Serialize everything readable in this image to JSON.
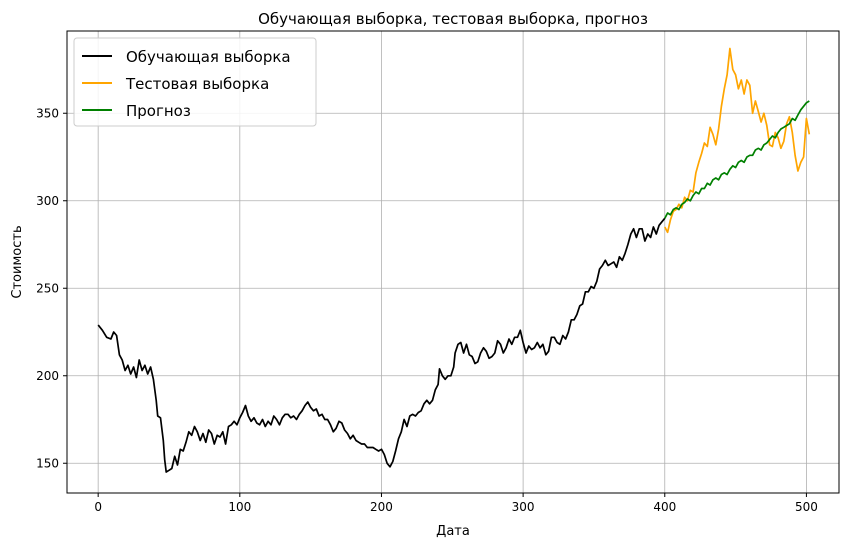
{
  "chart_data": {
    "type": "line",
    "title": "Обучающая выборка, тестовая выборка, прогноз",
    "xlabel": "Дата",
    "ylabel": "Стоимость",
    "xlim": [
      -22,
      523
    ],
    "ylim": [
      133,
      397
    ],
    "x_ticks": [
      0,
      100,
      200,
      300,
      400,
      500
    ],
    "y_ticks": [
      150,
      200,
      250,
      300,
      350
    ],
    "grid": true,
    "legend_position": "top-left",
    "series": [
      {
        "name": "Обучающая выборка",
        "color": "#000000",
        "points": [
          [
            0,
            229
          ],
          [
            3,
            226
          ],
          [
            6,
            222
          ],
          [
            9,
            221
          ],
          [
            11,
            225
          ],
          [
            13,
            223
          ],
          [
            15,
            212
          ],
          [
            17,
            209
          ],
          [
            19,
            203
          ],
          [
            21,
            206
          ],
          [
            23,
            201
          ],
          [
            25,
            205
          ],
          [
            27,
            199
          ],
          [
            29,
            209
          ],
          [
            31,
            203
          ],
          [
            33,
            206
          ],
          [
            35,
            201
          ],
          [
            37,
            205
          ],
          [
            39,
            198
          ],
          [
            41,
            186
          ],
          [
            42,
            177
          ],
          [
            44,
            176
          ],
          [
            46,
            163
          ],
          [
            47,
            152
          ],
          [
            48,
            145
          ],
          [
            50,
            146
          ],
          [
            52,
            147
          ],
          [
            54,
            154
          ],
          [
            56,
            149
          ],
          [
            58,
            158
          ],
          [
            60,
            157
          ],
          [
            62,
            162
          ],
          [
            64,
            168
          ],
          [
            66,
            166
          ],
          [
            68,
            171
          ],
          [
            70,
            168
          ],
          [
            72,
            163
          ],
          [
            74,
            167
          ],
          [
            76,
            162
          ],
          [
            78,
            169
          ],
          [
            80,
            167
          ],
          [
            82,
            161
          ],
          [
            84,
            166
          ],
          [
            86,
            165
          ],
          [
            88,
            168
          ],
          [
            90,
            161
          ],
          [
            92,
            171
          ],
          [
            94,
            172
          ],
          [
            96,
            174
          ],
          [
            98,
            172
          ],
          [
            100,
            176
          ],
          [
            102,
            179
          ],
          [
            104,
            183
          ],
          [
            106,
            177
          ],
          [
            108,
            174
          ],
          [
            110,
            176
          ],
          [
            112,
            173
          ],
          [
            114,
            172
          ],
          [
            116,
            175
          ],
          [
            118,
            171
          ],
          [
            120,
            174
          ],
          [
            122,
            172
          ],
          [
            124,
            177
          ],
          [
            126,
            175
          ],
          [
            128,
            172
          ],
          [
            130,
            176
          ],
          [
            132,
            178
          ],
          [
            134,
            178
          ],
          [
            136,
            176
          ],
          [
            138,
            177
          ],
          [
            140,
            175
          ],
          [
            142,
            178
          ],
          [
            144,
            180
          ],
          [
            146,
            183
          ],
          [
            148,
            185
          ],
          [
            150,
            182
          ],
          [
            152,
            180
          ],
          [
            154,
            181
          ],
          [
            156,
            177
          ],
          [
            158,
            178
          ],
          [
            160,
            175
          ],
          [
            162,
            175
          ],
          [
            164,
            172
          ],
          [
            166,
            168
          ],
          [
            168,
            170
          ],
          [
            170,
            174
          ],
          [
            172,
            173
          ],
          [
            174,
            169
          ],
          [
            176,
            167
          ],
          [
            178,
            164
          ],
          [
            180,
            166
          ],
          [
            182,
            163
          ],
          [
            184,
            162
          ],
          [
            186,
            161
          ],
          [
            188,
            161
          ],
          [
            190,
            159
          ],
          [
            192,
            159
          ],
          [
            194,
            159
          ],
          [
            196,
            158
          ],
          [
            198,
            157
          ],
          [
            200,
            158
          ],
          [
            202,
            155
          ],
          [
            204,
            150
          ],
          [
            206,
            148
          ],
          [
            208,
            151
          ],
          [
            210,
            157
          ],
          [
            212,
            164
          ],
          [
            214,
            168
          ],
          [
            216,
            175
          ],
          [
            218,
            171
          ],
          [
            220,
            177
          ],
          [
            222,
            178
          ],
          [
            224,
            177
          ],
          [
            226,
            179
          ],
          [
            228,
            180
          ],
          [
            230,
            184
          ],
          [
            232,
            186
          ],
          [
            234,
            184
          ],
          [
            236,
            186
          ],
          [
            238,
            192
          ],
          [
            240,
            195
          ],
          [
            241,
            204
          ],
          [
            243,
            200
          ],
          [
            245,
            198
          ],
          [
            247,
            200
          ],
          [
            249,
            200
          ],
          [
            251,
            205
          ],
          [
            252,
            213
          ],
          [
            254,
            218
          ],
          [
            256,
            219
          ],
          [
            258,
            213
          ],
          [
            260,
            218
          ],
          [
            262,
            212
          ],
          [
            264,
            211
          ],
          [
            266,
            207
          ],
          [
            268,
            208
          ],
          [
            270,
            213
          ],
          [
            272,
            216
          ],
          [
            274,
            214
          ],
          [
            276,
            210
          ],
          [
            278,
            211
          ],
          [
            280,
            213
          ],
          [
            282,
            220
          ],
          [
            284,
            218
          ],
          [
            286,
            213
          ],
          [
            288,
            216
          ],
          [
            290,
            221
          ],
          [
            292,
            218
          ],
          [
            294,
            222
          ],
          [
            296,
            222
          ],
          [
            298,
            226
          ],
          [
            300,
            219
          ],
          [
            302,
            213
          ],
          [
            304,
            217
          ],
          [
            306,
            215
          ],
          [
            308,
            216
          ],
          [
            310,
            219
          ],
          [
            312,
            216
          ],
          [
            314,
            218
          ],
          [
            316,
            212
          ],
          [
            318,
            214
          ],
          [
            320,
            222
          ],
          [
            322,
            222
          ],
          [
            324,
            219
          ],
          [
            326,
            218
          ],
          [
            328,
            223
          ],
          [
            330,
            221
          ],
          [
            332,
            225
          ],
          [
            334,
            232
          ],
          [
            336,
            232
          ],
          [
            338,
            235
          ],
          [
            340,
            240
          ],
          [
            342,
            241
          ],
          [
            344,
            248
          ],
          [
            346,
            248
          ],
          [
            348,
            251
          ],
          [
            350,
            250
          ],
          [
            352,
            254
          ],
          [
            354,
            261
          ],
          [
            356,
            263
          ],
          [
            358,
            266
          ],
          [
            360,
            263
          ],
          [
            362,
            264
          ],
          [
            364,
            265
          ],
          [
            366,
            262
          ],
          [
            368,
            268
          ],
          [
            370,
            266
          ],
          [
            372,
            270
          ],
          [
            374,
            275
          ],
          [
            376,
            281
          ],
          [
            378,
            284
          ],
          [
            380,
            279
          ],
          [
            382,
            284
          ],
          [
            384,
            284
          ],
          [
            386,
            277
          ],
          [
            388,
            281
          ],
          [
            390,
            279
          ],
          [
            392,
            285
          ],
          [
            394,
            281
          ],
          [
            396,
            286
          ],
          [
            398,
            288
          ],
          [
            400,
            290
          ]
        ]
      },
      {
        "name": "Тестовая выборка",
        "color": "#ffa500",
        "points": [
          [
            400,
            285
          ],
          [
            402,
            282
          ],
          [
            404,
            289
          ],
          [
            406,
            294
          ],
          [
            408,
            295
          ],
          [
            410,
            298
          ],
          [
            412,
            296
          ],
          [
            414,
            302
          ],
          [
            416,
            300
          ],
          [
            418,
            306
          ],
          [
            420,
            305
          ],
          [
            422,
            316
          ],
          [
            424,
            322
          ],
          [
            426,
            327
          ],
          [
            428,
            333
          ],
          [
            430,
            331
          ],
          [
            432,
            342
          ],
          [
            434,
            338
          ],
          [
            436,
            332
          ],
          [
            438,
            341
          ],
          [
            440,
            354
          ],
          [
            442,
            364
          ],
          [
            444,
            372
          ],
          [
            446,
            387
          ],
          [
            448,
            375
          ],
          [
            450,
            372
          ],
          [
            452,
            364
          ],
          [
            454,
            369
          ],
          [
            456,
            361
          ],
          [
            458,
            369
          ],
          [
            460,
            366
          ],
          [
            462,
            350
          ],
          [
            464,
            357
          ],
          [
            466,
            351
          ],
          [
            468,
            345
          ],
          [
            470,
            350
          ],
          [
            472,
            343
          ],
          [
            474,
            332
          ],
          [
            476,
            331
          ],
          [
            478,
            339
          ],
          [
            480,
            336
          ],
          [
            482,
            330
          ],
          [
            484,
            334
          ],
          [
            486,
            344
          ],
          [
            488,
            348
          ],
          [
            490,
            339
          ],
          [
            492,
            326
          ],
          [
            494,
            317
          ],
          [
            496,
            322
          ],
          [
            498,
            325
          ],
          [
            500,
            347
          ],
          [
            502,
            338
          ]
        ]
      },
      {
        "name": "Прогноз",
        "color": "#008000",
        "points": [
          [
            400,
            290
          ],
          [
            402,
            293
          ],
          [
            404,
            292
          ],
          [
            406,
            295
          ],
          [
            408,
            296
          ],
          [
            410,
            295
          ],
          [
            412,
            298
          ],
          [
            414,
            299
          ],
          [
            416,
            301
          ],
          [
            418,
            300
          ],
          [
            420,
            303
          ],
          [
            422,
            305
          ],
          [
            424,
            304
          ],
          [
            426,
            307
          ],
          [
            428,
            307
          ],
          [
            430,
            310
          ],
          [
            432,
            309
          ],
          [
            434,
            312
          ],
          [
            436,
            313
          ],
          [
            438,
            312
          ],
          [
            440,
            315
          ],
          [
            442,
            316
          ],
          [
            444,
            315
          ],
          [
            446,
            318
          ],
          [
            448,
            320
          ],
          [
            450,
            319
          ],
          [
            452,
            322
          ],
          [
            454,
            323
          ],
          [
            456,
            322
          ],
          [
            458,
            325
          ],
          [
            460,
            326
          ],
          [
            462,
            326
          ],
          [
            464,
            329
          ],
          [
            466,
            330
          ],
          [
            468,
            329
          ],
          [
            470,
            332
          ],
          [
            472,
            333
          ],
          [
            474,
            335
          ],
          [
            476,
            337
          ],
          [
            478,
            336
          ],
          [
            480,
            339
          ],
          [
            482,
            341
          ],
          [
            484,
            342
          ],
          [
            486,
            343
          ],
          [
            488,
            344
          ],
          [
            490,
            347
          ],
          [
            492,
            346
          ],
          [
            494,
            349
          ],
          [
            496,
            352
          ],
          [
            498,
            354
          ],
          [
            500,
            356
          ],
          [
            502,
            357
          ]
        ]
      }
    ]
  }
}
